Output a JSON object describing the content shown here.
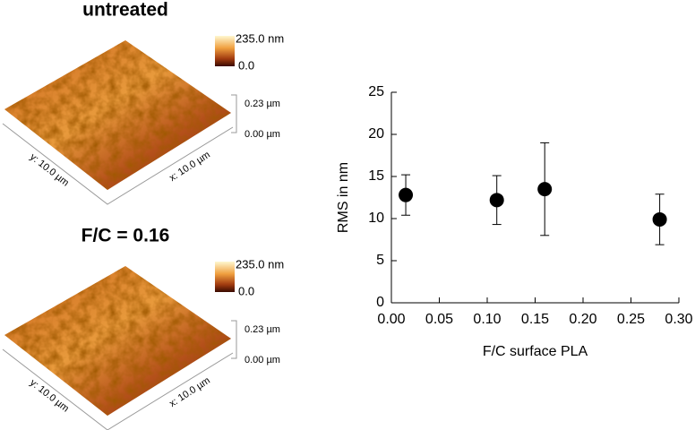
{
  "panels": [
    {
      "title": "untreated",
      "scale_max": "235.0 nm",
      "scale_min": "0.0",
      "z_max": "0.23 µm",
      "z_min": "0.00 µm",
      "y_axis": "y: 10.0 µm",
      "x_axis": "x: 10.0 µm"
    },
    {
      "title": "F/C = 0.16",
      "scale_max": "235.0 nm",
      "scale_min": "0.0",
      "z_max": "0.23 µm",
      "z_min": "0.00 µm",
      "y_axis": "y: 10.0 µm",
      "x_axis": "x: 10.0 µm"
    }
  ],
  "chart_data": {
    "type": "scatter",
    "x_label": "F/C surface PLA",
    "y_label": "RMS in nm",
    "x": [
      0.015,
      0.11,
      0.16,
      0.28
    ],
    "values": [
      12.8,
      12.2,
      13.5,
      9.9
    ],
    "errors": [
      2.4,
      2.9,
      5.5,
      3.0
    ],
    "color": "#000000",
    "xlim": [
      0,
      0.3
    ],
    "xticks": [
      {
        "value": 0,
        "label": "0.00"
      },
      {
        "value": 0.05,
        "label": "0.05"
      },
      {
        "value": 0.1,
        "label": "0.10"
      },
      {
        "value": 0.15,
        "label": "0.15"
      },
      {
        "value": 0.2,
        "label": "0.20"
      },
      {
        "value": 0.25,
        "label": "0.25"
      },
      {
        "value": 0.3,
        "label": "0.30"
      }
    ],
    "ylim": [
      0,
      25
    ],
    "yticks": [
      0,
      5,
      10,
      15,
      20,
      25
    ]
  }
}
